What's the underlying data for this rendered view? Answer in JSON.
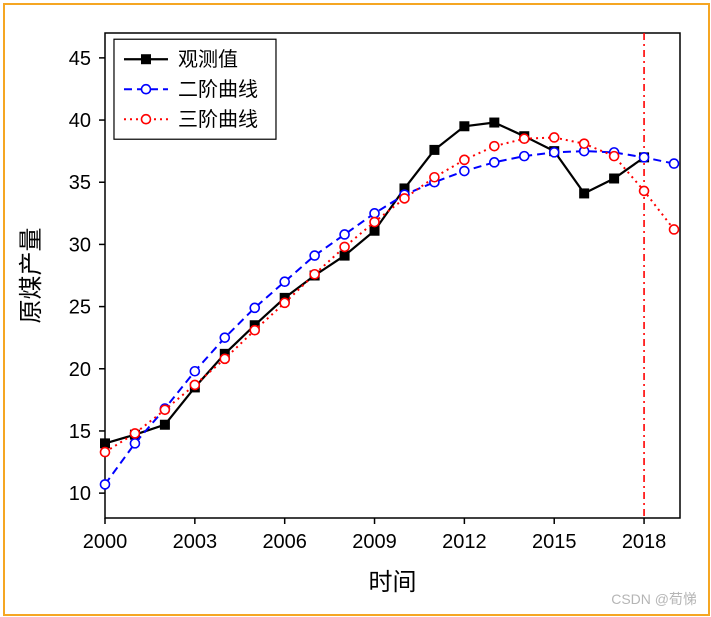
{
  "frame": {
    "border_color": "#f5a623",
    "background": "#ffffff"
  },
  "chart": {
    "type": "line",
    "xlabel": "时间",
    "ylabel": "原煤产量",
    "label_fontsize": 24,
    "tick_fontsize": 20,
    "xlim": [
      2000,
      2019.2
    ],
    "ylim": [
      8,
      47
    ],
    "xticks": [
      2000,
      2003,
      2006,
      2009,
      2012,
      2015,
      2018
    ],
    "yticks": [
      10,
      15,
      20,
      25,
      30,
      35,
      40,
      45
    ],
    "plot_background": "#ffffff",
    "axis_color": "#000000",
    "tick_color": "#000000",
    "tick_length": 6,
    "years": [
      2000,
      2001,
      2002,
      2003,
      2004,
      2005,
      2006,
      2007,
      2008,
      2009,
      2010,
      2011,
      2012,
      2013,
      2014,
      2015,
      2016,
      2017,
      2018,
      2019
    ],
    "series": {
      "obs": {
        "label": "观测值",
        "color": "#000000",
        "line_style": "solid",
        "line_width": 2.2,
        "marker": "square-filled",
        "marker_size": 5,
        "y": [
          14.0,
          14.7,
          15.5,
          18.5,
          21.2,
          23.5,
          25.7,
          27.5,
          29.1,
          31.1,
          34.5,
          37.6,
          39.5,
          39.8,
          38.7,
          37.5,
          34.1,
          35.3,
          37.0,
          null
        ]
      },
      "quad": {
        "label": "二阶曲线",
        "color": "#0000ff",
        "line_style": "dashed",
        "line_width": 2.0,
        "marker": "circle-open",
        "marker_size": 4.5,
        "dash": "8,5",
        "y": [
          10.7,
          14.0,
          16.8,
          19.8,
          22.5,
          24.9,
          27.0,
          29.1,
          30.8,
          32.5,
          34.0,
          35.0,
          35.9,
          36.6,
          37.1,
          37.4,
          37.5,
          37.4,
          37.0,
          36.5
        ]
      },
      "cubic": {
        "label": "三阶曲线",
        "color": "#ff0000",
        "line_style": "dotted",
        "line_width": 2.0,
        "marker": "circle-open",
        "marker_size": 4.5,
        "dash": "2,4",
        "y": [
          13.3,
          14.8,
          16.7,
          18.7,
          20.8,
          23.1,
          25.3,
          27.6,
          29.8,
          31.8,
          33.7,
          35.4,
          36.8,
          37.9,
          38.5,
          38.6,
          38.1,
          37.1,
          34.3,
          31.2
        ]
      }
    },
    "vline": {
      "x": 2018,
      "color": "#ff0000",
      "dash": "7,4,2,4",
      "width": 1.6
    },
    "legend": {
      "x": 2000.3,
      "y_top": 46.5,
      "box_stroke": "#000000",
      "box_fill": "#ffffff",
      "fontsize": 20,
      "entries": [
        "obs",
        "quad",
        "cubic"
      ]
    }
  },
  "watermark": "CSDN @荀悌"
}
